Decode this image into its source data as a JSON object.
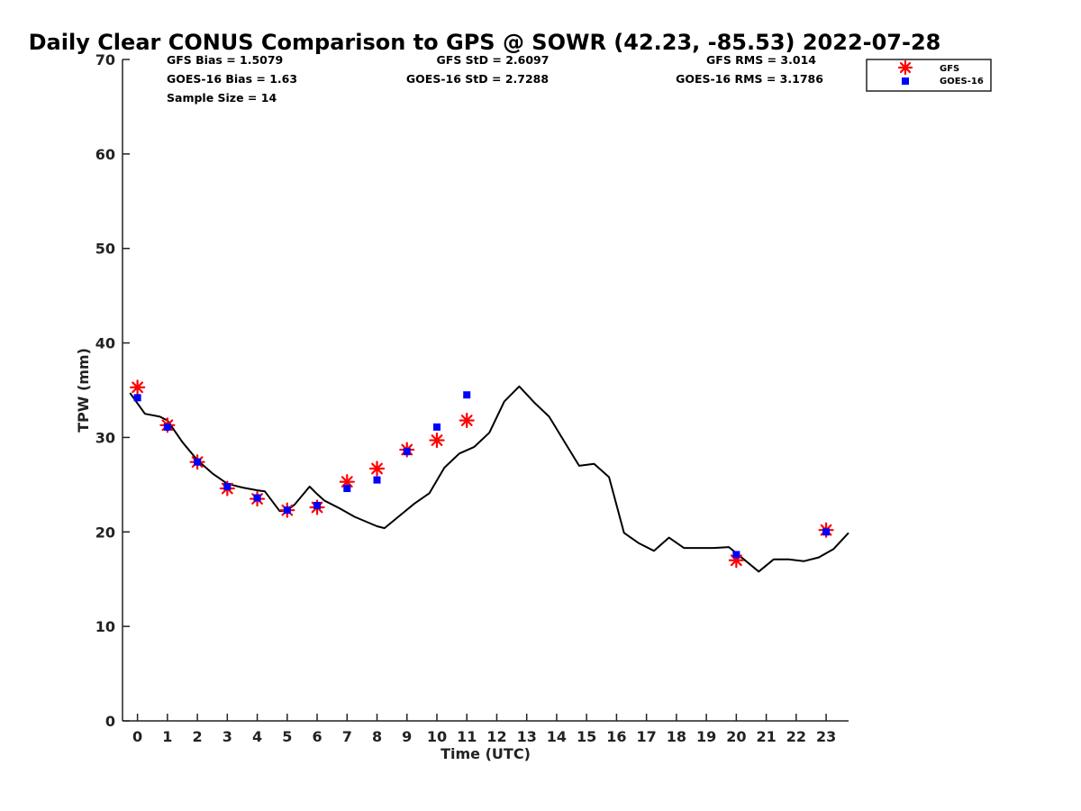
{
  "chart_data": {
    "type": "scatter",
    "title": "Daily Clear CONUS Comparison to GPS @ SOWR (42.23, -85.53) 2022-07-28",
    "xlabel": "Time (UTC)",
    "ylabel": "TPW (mm)",
    "xlim": [
      -0.5,
      23.75
    ],
    "ylim": [
      0,
      70
    ],
    "x_ticks": [
      0,
      1,
      2,
      3,
      4,
      5,
      6,
      7,
      8,
      9,
      10,
      11,
      12,
      13,
      14,
      15,
      16,
      17,
      18,
      19,
      20,
      21,
      22,
      23
    ],
    "y_ticks": [
      0,
      10,
      20,
      30,
      40,
      50,
      60,
      70
    ],
    "stats": {
      "gfs_bias": "GFS Bias = 1.5079",
      "goes_bias": "GOES-16 Bias = 1.63",
      "sample_size": "Sample Size = 14",
      "gfs_std": "GFS StD = 2.6097",
      "goes_std": "GOES-16 StD = 2.7288",
      "gfs_rms": "GFS RMS = 3.014",
      "goes_rms": "GOES-16 RMS = 3.1786"
    },
    "legend": {
      "position": "top-right",
      "entries": [
        "GFS",
        "GOES-16"
      ]
    },
    "colors": {
      "gfs": "#ff0000",
      "goes": "#0000ff",
      "gps": "#000000"
    },
    "series": [
      {
        "name": "GPS",
        "style": "line",
        "x": [
          -0.25,
          0.25,
          0.75,
          1,
          1.5,
          2,
          2.5,
          3,
          3.5,
          4,
          4.25,
          4.75,
          5,
          5.25,
          5.75,
          6,
          6.25,
          6.75,
          7.25,
          8,
          8.25,
          8.75,
          9.25,
          9.75,
          10.25,
          10.75,
          11.25,
          11.75,
          12.25,
          12.75,
          13.25,
          13.75,
          14.25,
          14.75,
          15.25,
          15.75,
          16.25,
          16.75,
          17.25,
          17.75,
          18.25,
          18.75,
          19.25,
          19.75,
          20.25,
          20.75,
          21.25,
          21.75,
          22.25,
          22.75,
          23.25,
          23.75
        ],
        "values": [
          34.7,
          32.5,
          32.2,
          31.8,
          29.5,
          27.6,
          26.2,
          25.1,
          24.7,
          24.4,
          24.3,
          22.2,
          22.3,
          22.9,
          24.8,
          24.0,
          23.3,
          22.5,
          21.6,
          20.6,
          20.4,
          21.7,
          23.0,
          24.1,
          26.8,
          28.3,
          29.0,
          30.5,
          33.8,
          35.4,
          33.7,
          32.2,
          29.6,
          27.0,
          27.2,
          25.8,
          19.9,
          18.8,
          18.0,
          19.4,
          18.3,
          18.3,
          18.3,
          18.4,
          17.1,
          15.8,
          17.1,
          17.1,
          16.9,
          17.3,
          18.2,
          19.9
        ]
      },
      {
        "name": "GFS",
        "style": "star",
        "x": [
          0,
          1,
          2,
          3,
          4,
          5,
          6,
          7,
          8,
          9,
          10,
          11,
          20,
          23
        ],
        "values": [
          35.3,
          31.3,
          27.4,
          24.6,
          23.5,
          22.3,
          22.6,
          25.3,
          26.7,
          28.7,
          29.7,
          31.8,
          17.0,
          20.2
        ]
      },
      {
        "name": "GOES-16",
        "style": "square",
        "x": [
          0,
          1,
          2,
          3,
          4,
          5,
          6,
          7,
          8,
          9,
          10,
          11,
          20,
          23
        ],
        "values": [
          34.2,
          31.1,
          27.4,
          24.8,
          23.6,
          22.3,
          22.8,
          24.6,
          25.5,
          28.5,
          31.1,
          34.5,
          17.6,
          20.0
        ]
      }
    ]
  }
}
